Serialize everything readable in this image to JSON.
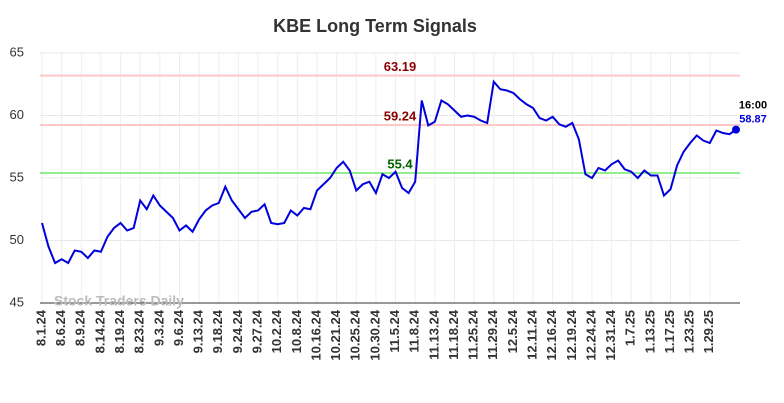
{
  "chart_data": {
    "type": "line",
    "title": "KBE Long Term Signals",
    "categories": [
      "8.1.24",
      null,
      null,
      "8.6.24",
      null,
      null,
      "8.9.24",
      null,
      null,
      "8.14.24",
      null,
      null,
      "8.19.24",
      null,
      null,
      "8.23.24",
      null,
      null,
      "9.3.24",
      null,
      null,
      "9.6.24",
      null,
      null,
      "9.13.24",
      null,
      null,
      "9.18.24",
      null,
      null,
      "9.24.24",
      null,
      null,
      "9.27.24",
      null,
      null,
      "10.2.24",
      null,
      null,
      "10.8.24",
      null,
      null,
      "10.16.24",
      null,
      null,
      "10.21.24",
      null,
      null,
      "10.25.24",
      null,
      null,
      "10.30.24",
      null,
      null,
      "11.5.24",
      null,
      null,
      "11.8.24",
      null,
      null,
      "11.13.24",
      null,
      null,
      "11.18.24",
      null,
      null,
      "11.25.24",
      null,
      null,
      "11.29.24",
      null,
      null,
      "12.5.24",
      null,
      null,
      "12.11.24",
      null,
      null,
      "12.16.24",
      null,
      null,
      "12.19.24",
      null,
      null,
      "12.24.24",
      null,
      null,
      "12.31.24",
      null,
      null,
      "1.7.25",
      null,
      null,
      "1.13.25",
      null,
      null,
      "1.17.25",
      null,
      null,
      "1.23.25",
      null,
      null,
      "1.29.25",
      null,
      null,
      null,
      null
    ],
    "values": [
      51.4,
      49.5,
      48.2,
      48.5,
      48.2,
      49.2,
      49.1,
      48.6,
      49.2,
      49.1,
      50.3,
      51.0,
      51.4,
      50.8,
      51.0,
      53.2,
      52.5,
      53.6,
      52.8,
      52.3,
      51.8,
      50.8,
      51.2,
      50.7,
      51.7,
      52.4,
      52.8,
      53.0,
      54.3,
      53.2,
      52.5,
      51.8,
      52.3,
      52.4,
      52.9,
      51.4,
      51.3,
      51.4,
      52.4,
      52.0,
      52.6,
      52.5,
      54.0,
      54.5,
      55.0,
      55.8,
      56.3,
      55.6,
      54.0,
      54.5,
      54.7,
      53.8,
      55.3,
      55.0,
      55.5,
      54.2,
      53.8,
      54.7,
      61.2,
      59.2,
      59.5,
      61.2,
      60.9,
      60.4,
      59.9,
      60.0,
      59.9,
      59.6,
      59.4,
      62.7,
      62.1,
      62.0,
      61.8,
      61.3,
      60.9,
      60.6,
      59.8,
      59.6,
      59.9,
      59.3,
      59.1,
      59.4,
      58.1,
      55.3,
      55.0,
      55.8,
      55.6,
      56.1,
      56.4,
      55.7,
      55.5,
      55.0,
      55.6,
      55.2,
      55.2,
      53.6,
      54.1,
      56.0,
      57.1,
      57.8,
      58.4,
      58.0,
      57.8,
      58.8,
      58.6,
      58.5,
      58.87
    ],
    "color": "#0000dd",
    "ylim": [
      45,
      65
    ],
    "yticks": [
      45,
      50,
      55,
      60,
      65
    ],
    "grid": true,
    "hlines": [
      {
        "value": 63.19,
        "color": "#ffc8c8",
        "label_color": "#8b0000"
      },
      {
        "value": 59.24,
        "color": "#ffc8c8",
        "label_color": "#8b0000"
      },
      {
        "value": 55.4,
        "color": "#90ee90",
        "label_color": "#006400"
      }
    ],
    "last_time": "16:00",
    "watermark": "Stock Traders Daily"
  }
}
